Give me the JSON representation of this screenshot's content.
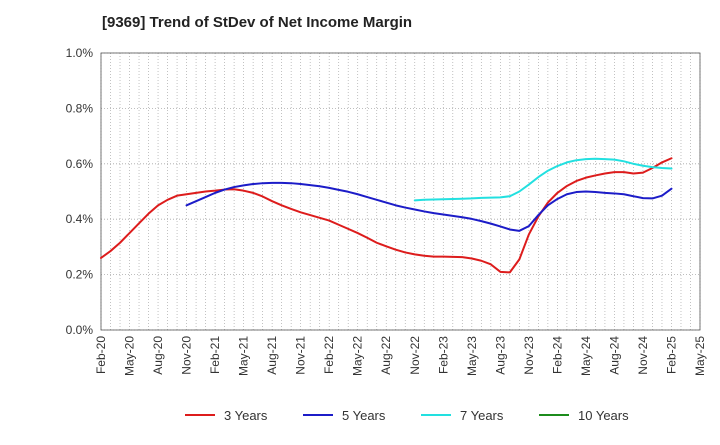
{
  "chart_data": {
    "type": "line",
    "title": "[9369]  Trend of StDev of Net Income Margin",
    "xlabel": "",
    "ylabel": "",
    "x_ticks": [
      "Feb-20",
      "May-20",
      "Aug-20",
      "Nov-20",
      "Feb-21",
      "May-21",
      "Aug-21",
      "Nov-21",
      "Feb-22",
      "May-22",
      "Aug-22",
      "Nov-22",
      "Feb-23",
      "May-23",
      "Aug-23",
      "Nov-23",
      "Feb-24",
      "May-24",
      "Aug-24",
      "Nov-24",
      "Feb-25",
      "May-25"
    ],
    "y_ticks": [
      "0.0%",
      "0.2%",
      "0.4%",
      "0.6%",
      "0.8%",
      "1.0%"
    ],
    "ylim": [
      0,
      1.0
    ],
    "y_unit": "%",
    "grid": true,
    "legend_position": "bottom",
    "series": [
      {
        "name": "3 Years",
        "color": "#dd1c1c",
        "x": [
          "2020-02",
          "2020-03",
          "2020-04",
          "2020-05",
          "2020-06",
          "2020-07",
          "2020-08",
          "2020-09",
          "2020-10",
          "2020-11",
          "2020-12",
          "2021-01",
          "2021-02",
          "2021-03",
          "2021-04",
          "2021-05",
          "2021-06",
          "2021-07",
          "2021-08",
          "2021-09",
          "2021-10",
          "2021-11",
          "2021-12",
          "2022-01",
          "2022-02",
          "2022-03",
          "2022-04",
          "2022-05",
          "2022-06",
          "2022-07",
          "2022-08",
          "2022-09",
          "2022-10",
          "2022-11",
          "2022-12",
          "2023-01",
          "2023-02",
          "2023-03",
          "2023-04",
          "2023-05",
          "2023-06",
          "2023-07",
          "2023-08",
          "2023-09",
          "2023-10",
          "2023-11",
          "2023-12",
          "2024-01",
          "2024-02",
          "2024-03",
          "2024-04",
          "2024-05",
          "2024-06",
          "2024-07",
          "2024-08",
          "2024-09",
          "2024-10",
          "2024-11",
          "2024-12",
          "2025-01",
          "2025-02"
        ],
        "values": [
          0.26,
          0.285,
          0.315,
          0.35,
          0.385,
          0.42,
          0.45,
          0.47,
          0.485,
          0.49,
          0.495,
          0.5,
          0.503,
          0.507,
          0.508,
          0.503,
          0.495,
          0.482,
          0.465,
          0.45,
          0.437,
          0.425,
          0.415,
          0.405,
          0.395,
          0.38,
          0.365,
          0.35,
          0.333,
          0.315,
          0.302,
          0.29,
          0.28,
          0.273,
          0.268,
          0.265,
          0.265,
          0.264,
          0.263,
          0.258,
          0.25,
          0.237,
          0.21,
          0.208,
          0.255,
          0.345,
          0.41,
          0.46,
          0.495,
          0.52,
          0.538,
          0.55,
          0.558,
          0.565,
          0.57,
          0.57,
          0.565,
          0.568,
          0.585,
          0.605,
          0.62
        ]
      },
      {
        "name": "5 Years",
        "color": "#1c1cc8",
        "x": [
          "2020-11",
          "2020-12",
          "2021-01",
          "2021-02",
          "2021-03",
          "2021-04",
          "2021-05",
          "2021-06",
          "2021-07",
          "2021-08",
          "2021-09",
          "2021-10",
          "2021-11",
          "2021-12",
          "2022-01",
          "2022-02",
          "2022-03",
          "2022-04",
          "2022-05",
          "2022-06",
          "2022-07",
          "2022-08",
          "2022-09",
          "2022-10",
          "2022-11",
          "2022-12",
          "2023-01",
          "2023-02",
          "2023-03",
          "2023-04",
          "2023-05",
          "2023-06",
          "2023-07",
          "2023-08",
          "2023-09",
          "2023-10",
          "2023-11",
          "2023-12",
          "2024-01",
          "2024-02",
          "2024-03",
          "2024-04",
          "2024-05",
          "2024-06",
          "2024-07",
          "2024-08",
          "2024-09",
          "2024-10",
          "2024-11",
          "2024-12",
          "2025-01",
          "2025-02"
        ],
        "values": [
          0.45,
          0.465,
          0.48,
          0.495,
          0.507,
          0.516,
          0.522,
          0.527,
          0.53,
          0.531,
          0.531,
          0.53,
          0.527,
          0.523,
          0.519,
          0.513,
          0.506,
          0.499,
          0.49,
          0.48,
          0.47,
          0.46,
          0.45,
          0.442,
          0.435,
          0.428,
          0.422,
          0.417,
          0.412,
          0.407,
          0.401,
          0.393,
          0.384,
          0.374,
          0.363,
          0.358,
          0.375,
          0.415,
          0.45,
          0.473,
          0.49,
          0.498,
          0.5,
          0.498,
          0.495,
          0.493,
          0.49,
          0.483,
          0.476,
          0.475,
          0.485,
          0.51
        ]
      },
      {
        "name": "7 Years",
        "color": "#22e0e0",
        "x": [
          "2022-11",
          "2022-12",
          "2023-01",
          "2023-02",
          "2023-03",
          "2023-04",
          "2023-05",
          "2023-06",
          "2023-07",
          "2023-08",
          "2023-09",
          "2023-10",
          "2023-11",
          "2023-12",
          "2024-01",
          "2024-02",
          "2024-03",
          "2024-04",
          "2024-05",
          "2024-06",
          "2024-07",
          "2024-08",
          "2024-09",
          "2024-10",
          "2024-11",
          "2024-12",
          "2025-01",
          "2025-02"
        ],
        "values": [
          0.468,
          0.47,
          0.471,
          0.472,
          0.473,
          0.474,
          0.475,
          0.477,
          0.478,
          0.479,
          0.483,
          0.5,
          0.525,
          0.552,
          0.575,
          0.592,
          0.605,
          0.613,
          0.617,
          0.618,
          0.617,
          0.615,
          0.609,
          0.6,
          0.593,
          0.588,
          0.585,
          0.583
        ]
      },
      {
        "name": "10 Years",
        "color": "#1c8c1c",
        "x": [],
        "values": []
      }
    ]
  }
}
